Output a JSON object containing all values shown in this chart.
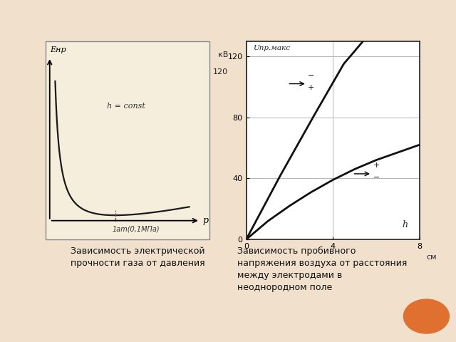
{
  "background_color": "#f0e0cc",
  "chart1": {
    "xlabel": "p",
    "ylabel": "Eнр",
    "annotation": "h = const",
    "x_label_bottom": "1am(0,1МПа)",
    "box_facecolor": "#f5eedd",
    "box_edgecolor": "#888888",
    "line_color": "#1a1a1a"
  },
  "chart2": {
    "ylabel_kv": "кВ",
    "ylabel_kv2": "120",
    "ylabel_u": "Uпр.макс",
    "xlabel": "h",
    "xlabel_unit": "см",
    "yticks": [
      0,
      40,
      80,
      120
    ],
    "xticks": [
      0,
      4,
      8
    ],
    "box_facecolor": "#ffffff",
    "box_edgecolor": "#333333",
    "line1_color": "#111111",
    "line2_color": "#111111"
  },
  "caption1": "Зависимость электрической\nпрочности газа от давления",
  "caption2": "Зависимость пробивного\nнапряжения воздуха от расстояния\nмежду электродами в\nнеоднородном поле",
  "caption_fontsize": 9,
  "orange_circle_color": "#e07030"
}
